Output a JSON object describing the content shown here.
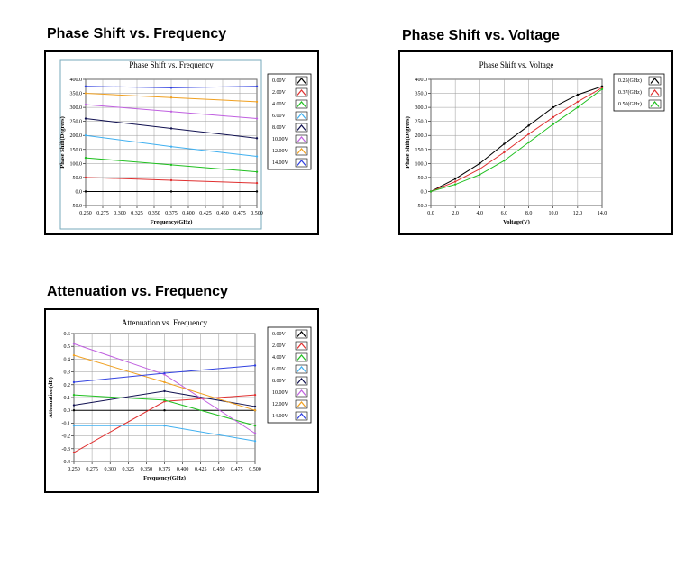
{
  "chart_data": [
    {
      "type": "line",
      "heading": "Phase Shift vs. Frequency",
      "title": "Phase Shift vs. Frequency",
      "x_label": "Frequency(GHz)",
      "y_label": "Phase Shift(Degrees)",
      "grid": true,
      "x": [
        0.25,
        0.375,
        0.5
      ],
      "xlim": [
        0.25,
        0.5
      ],
      "xticks": [
        {
          "value": 0.25,
          "label": "0.250"
        },
        {
          "value": 0.275,
          "label": "0.275"
        },
        {
          "value": 0.3,
          "label": "0.300"
        },
        {
          "value": 0.325,
          "label": "0.325"
        },
        {
          "value": 0.35,
          "label": "0.350"
        },
        {
          "value": 0.375,
          "label": "0.375"
        },
        {
          "value": 0.4,
          "label": "0.400"
        },
        {
          "value": 0.425,
          "label": "0.425"
        },
        {
          "value": 0.45,
          "label": "0.450"
        },
        {
          "value": 0.475,
          "label": "0.475"
        },
        {
          "value": 0.5,
          "label": "0.500"
        }
      ],
      "ylim": [
        -50,
        400
      ],
      "yticks": [
        {
          "value": -50,
          "label": "-50.0"
        },
        {
          "value": 0,
          "label": "0.0"
        },
        {
          "value": 50,
          "label": "50.0"
        },
        {
          "value": 100,
          "label": "100.0"
        },
        {
          "value": 150,
          "label": "150.0"
        },
        {
          "value": 200,
          "label": "200.0"
        },
        {
          "value": 250,
          "label": "250.0"
        },
        {
          "value": 300,
          "label": "300.0"
        },
        {
          "value": 350,
          "label": "350.0"
        },
        {
          "value": 400,
          "label": "400.0"
        }
      ],
      "series": [
        {
          "name": "0.00V",
          "color": "#000000",
          "values": [
            0,
            0,
            0
          ]
        },
        {
          "name": "2.00V",
          "color": "#e03030",
          "values": [
            50,
            40,
            30
          ]
        },
        {
          "name": "4.00V",
          "color": "#20c020",
          "values": [
            120,
            95,
            70
          ]
        },
        {
          "name": "6.00V",
          "color": "#40b0f0",
          "values": [
            200,
            160,
            125
          ]
        },
        {
          "name": "8.00V",
          "color": "#101050",
          "values": [
            260,
            225,
            190
          ]
        },
        {
          "name": "10.00V",
          "color": "#c060e0",
          "values": [
            310,
            285,
            260
          ]
        },
        {
          "name": "12.00V",
          "color": "#f0a020",
          "values": [
            350,
            335,
            320
          ]
        },
        {
          "name": "14.00V",
          "color": "#3040e0",
          "values": [
            375,
            370,
            375
          ]
        }
      ]
    },
    {
      "type": "line",
      "heading": "Phase Shift vs. Voltage",
      "title": "Phase Shift vs. Voltage",
      "x_label": "Voltage(V)",
      "y_label": "Phase Shift(Degrees)",
      "grid": true,
      "x": [
        0,
        2,
        4,
        6,
        8,
        10,
        12,
        14
      ],
      "xlim": [
        0,
        14
      ],
      "xticks": [
        {
          "value": 0,
          "label": "0.0"
        },
        {
          "value": 2,
          "label": "2.0"
        },
        {
          "value": 4,
          "label": "4.0"
        },
        {
          "value": 6,
          "label": "6.0"
        },
        {
          "value": 8,
          "label": "8.0"
        },
        {
          "value": 10,
          "label": "10.0"
        },
        {
          "value": 12,
          "label": "12.0"
        },
        {
          "value": 14,
          "label": "14.0"
        }
      ],
      "ylim": [
        -50,
        400
      ],
      "yticks": [
        {
          "value": -50,
          "label": "-50.0"
        },
        {
          "value": 0,
          "label": "0.0"
        },
        {
          "value": 50,
          "label": "50.0"
        },
        {
          "value": 100,
          "label": "100.0"
        },
        {
          "value": 150,
          "label": "150.0"
        },
        {
          "value": 200,
          "label": "200.0"
        },
        {
          "value": 250,
          "label": "250.0"
        },
        {
          "value": 300,
          "label": "300.0"
        },
        {
          "value": 350,
          "label": "350.0"
        },
        {
          "value": 400,
          "label": "400.0"
        }
      ],
      "series": [
        {
          "name": "0.25(GHz)",
          "color": "#000000",
          "values": [
            0,
            45,
            100,
            170,
            235,
            300,
            345,
            375
          ]
        },
        {
          "name": "0.37(GHz)",
          "color": "#e03030",
          "values": [
            0,
            35,
            80,
            140,
            205,
            265,
            320,
            370
          ]
        },
        {
          "name": "0.50(GHz)",
          "color": "#20c020",
          "values": [
            0,
            25,
            60,
            110,
            175,
            240,
            300,
            365
          ]
        }
      ]
    },
    {
      "type": "line",
      "heading": "Attenuation vs. Frequency",
      "title": "Attenuation vs. Frequency",
      "x_label": "Frequency(GHz)",
      "y_label": "Attenuation(dB)",
      "grid": true,
      "x": [
        0.25,
        0.375,
        0.5
      ],
      "xlim": [
        0.25,
        0.5
      ],
      "xticks": [
        {
          "value": 0.25,
          "label": "0.250"
        },
        {
          "value": 0.275,
          "label": "0.275"
        },
        {
          "value": 0.3,
          "label": "0.300"
        },
        {
          "value": 0.325,
          "label": "0.325"
        },
        {
          "value": 0.35,
          "label": "0.350"
        },
        {
          "value": 0.375,
          "label": "0.375"
        },
        {
          "value": 0.4,
          "label": "0.400"
        },
        {
          "value": 0.425,
          "label": "0.425"
        },
        {
          "value": 0.45,
          "label": "0.450"
        },
        {
          "value": 0.475,
          "label": "0.475"
        },
        {
          "value": 0.5,
          "label": "0.500"
        }
      ],
      "ylim": [
        -0.4,
        0.6
      ],
      "yticks": [
        -0.4,
        -0.3,
        -0.2,
        -0.1,
        {
          "value": 0,
          "label": "0.0"
        },
        0.1,
        0.2,
        0.3,
        0.4,
        0.5,
        0.6
      ],
      "series": [
        {
          "name": "0.00V",
          "color": "#000000",
          "values": [
            0,
            0,
            0
          ]
        },
        {
          "name": "2.00V",
          "color": "#e03030",
          "values": [
            -0.33,
            0.07,
            0.12
          ]
        },
        {
          "name": "4.00V",
          "color": "#20c020",
          "values": [
            0.12,
            0.08,
            -0.12
          ]
        },
        {
          "name": "6.00V",
          "color": "#40b0f0",
          "values": [
            -0.12,
            -0.12,
            -0.24
          ]
        },
        {
          "name": "8.00V",
          "color": "#101050",
          "values": [
            0.04,
            0.15,
            0.03
          ]
        },
        {
          "name": "10.00V",
          "color": "#c060e0",
          "values": [
            0.52,
            0.28,
            -0.18
          ]
        },
        {
          "name": "12.00V",
          "color": "#f0a020",
          "values": [
            0.43,
            0.22,
            0
          ]
        },
        {
          "name": "14.00V",
          "color": "#3040e0",
          "values": [
            0.22,
            0.29,
            0.35
          ]
        }
      ]
    }
  ]
}
